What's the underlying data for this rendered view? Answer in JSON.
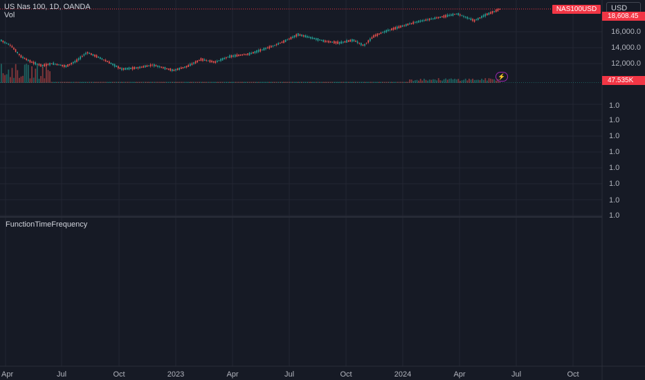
{
  "legend": {
    "symbol_title": "US Nas 100, 1D, OANDA",
    "volume_label": "Vol"
  },
  "currency_button": "USD",
  "symbol_badge": "NAS100USD",
  "last_price_badge": "18,6​08.45",
  "volume_badge": "47.535K",
  "price_scale": [
    "16,000.0",
    "14,000.0",
    "12,000.0"
  ],
  "indicator_scale": [
    "1.0",
    "1.0",
    "1.0",
    "1.0",
    "1.0",
    "1.0",
    "1.0",
    "1.0"
  ],
  "lower_pane_title": "FunctionTimeFrequency",
  "time_axis": [
    "Apr",
    "Jul",
    "Oct",
    "2023",
    "Apr",
    "Jul",
    "Oct",
    "2024",
    "Apr",
    "Jul",
    "Oct"
  ],
  "alert_icon": "lightning-bolt-icon",
  "colors": {
    "up": "#26a69a",
    "down": "#ef5350",
    "badge": "#f23645",
    "background": "#161a25",
    "grid": "#232632"
  }
}
